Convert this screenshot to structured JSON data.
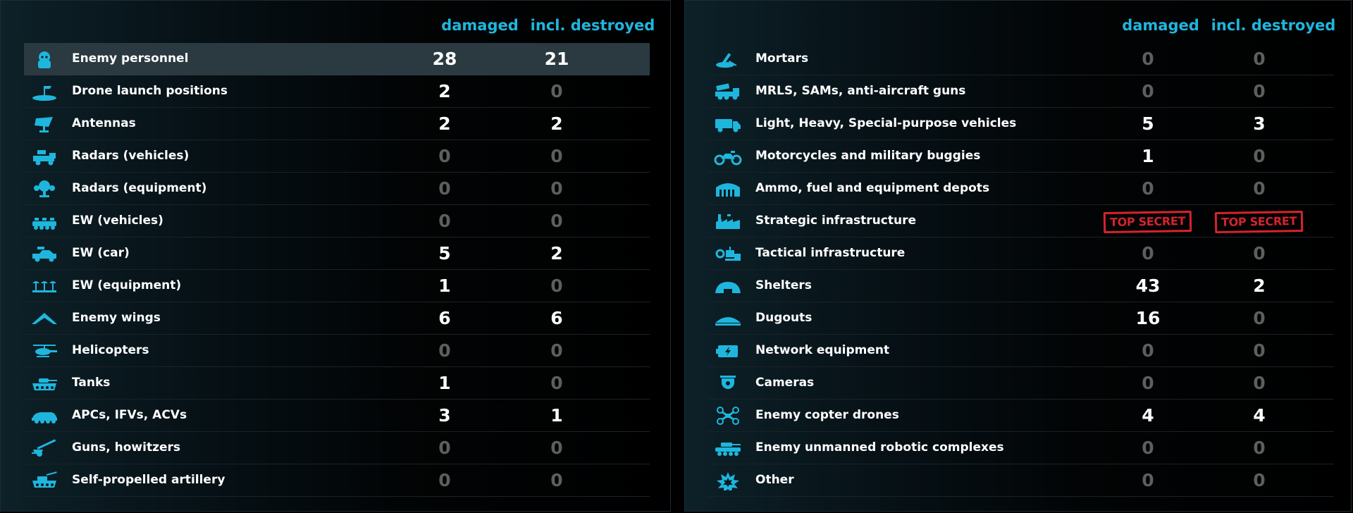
{
  "left": {
    "headers": {
      "damaged": "damaged",
      "destroyed": "incl. destroyed"
    },
    "rows": [
      {
        "icon": "soldier-icon",
        "label": "Enemy personnel",
        "damaged": "28",
        "destroyed": "21"
      },
      {
        "icon": "drone-launch-icon",
        "label": "Drone launch positions",
        "damaged": "2",
        "destroyed": "0"
      },
      {
        "icon": "antenna-icon",
        "label": "Antennas",
        "damaged": "2",
        "destroyed": "2"
      },
      {
        "icon": "radar-vehicle-icon",
        "label": "Radars (vehicles)",
        "damaged": "0",
        "destroyed": "0"
      },
      {
        "icon": "radar-equipment-icon",
        "label": "Radars (equipment)",
        "damaged": "0",
        "destroyed": "0"
      },
      {
        "icon": "ew-vehicle-icon",
        "label": "EW (vehicles)",
        "damaged": "0",
        "destroyed": "0"
      },
      {
        "icon": "ew-car-icon",
        "label": "EW (car)",
        "damaged": "5",
        "destroyed": "2"
      },
      {
        "icon": "ew-equipment-icon",
        "label": "EW (equipment)",
        "damaged": "1",
        "destroyed": "0"
      },
      {
        "icon": "wing-icon",
        "label": "Enemy wings",
        "damaged": "6",
        "destroyed": "6"
      },
      {
        "icon": "helicopter-icon",
        "label": "Helicopters",
        "damaged": "0",
        "destroyed": "0"
      },
      {
        "icon": "tank-icon",
        "label": "Tanks",
        "damaged": "1",
        "destroyed": "0"
      },
      {
        "icon": "apc-icon",
        "label": "APCs, IFVs, ACVs",
        "damaged": "3",
        "destroyed": "1"
      },
      {
        "icon": "howitzer-icon",
        "label": "Guns, howitzers",
        "damaged": "0",
        "destroyed": "0"
      },
      {
        "icon": "self-propelled-artillery-icon",
        "label": "Self-propelled artillery",
        "damaged": "0",
        "destroyed": "0"
      }
    ]
  },
  "right": {
    "headers": {
      "damaged": "damaged",
      "destroyed": "incl. destroyed"
    },
    "rows": [
      {
        "icon": "mortar-icon",
        "label": "Mortars",
        "damaged": "0",
        "destroyed": "0"
      },
      {
        "icon": "mrls-icon",
        "label": "MRLS, SAMs, anti-aircraft guns",
        "damaged": "0",
        "destroyed": "0"
      },
      {
        "icon": "truck-icon",
        "label": "Light, Heavy, Special-purpose vehicles",
        "damaged": "5",
        "destroyed": "3"
      },
      {
        "icon": "motorcycle-icon",
        "label": "Motorcycles and military buggies",
        "damaged": "1",
        "destroyed": "0"
      },
      {
        "icon": "depot-icon",
        "label": "Ammo, fuel and equipment depots",
        "damaged": "0",
        "destroyed": "0"
      },
      {
        "icon": "factory-icon",
        "label": "Strategic infrastructure",
        "damaged": "TOP SECRET",
        "destroyed": "TOP SECRET",
        "stamp": true
      },
      {
        "icon": "tactical-infrastructure-icon",
        "label": "Tactical infrastructure",
        "damaged": "0",
        "destroyed": "0"
      },
      {
        "icon": "shelter-icon",
        "label": "Shelters",
        "damaged": "43",
        "destroyed": "2"
      },
      {
        "icon": "dugout-icon",
        "label": "Dugouts",
        "damaged": "16",
        "destroyed": "0"
      },
      {
        "icon": "network-equipment-icon",
        "label": "Network equipment",
        "damaged": "0",
        "destroyed": "0"
      },
      {
        "icon": "camera-icon",
        "label": "Cameras",
        "damaged": "0",
        "destroyed": "0"
      },
      {
        "icon": "copter-drone-icon",
        "label": "Enemy copter drones",
        "damaged": "4",
        "destroyed": "4"
      },
      {
        "icon": "robotic-complex-icon",
        "label": "Enemy unmanned robotic complexes",
        "damaged": "0",
        "destroyed": "0"
      },
      {
        "icon": "explosion-icon",
        "label": "Other",
        "damaged": "0",
        "destroyed": "0"
      }
    ]
  },
  "colors": {
    "accent": "#1fb6dd",
    "zero": "#5c5e60",
    "stamp": "#d6232f",
    "highlight_row": "#2a3a40"
  }
}
